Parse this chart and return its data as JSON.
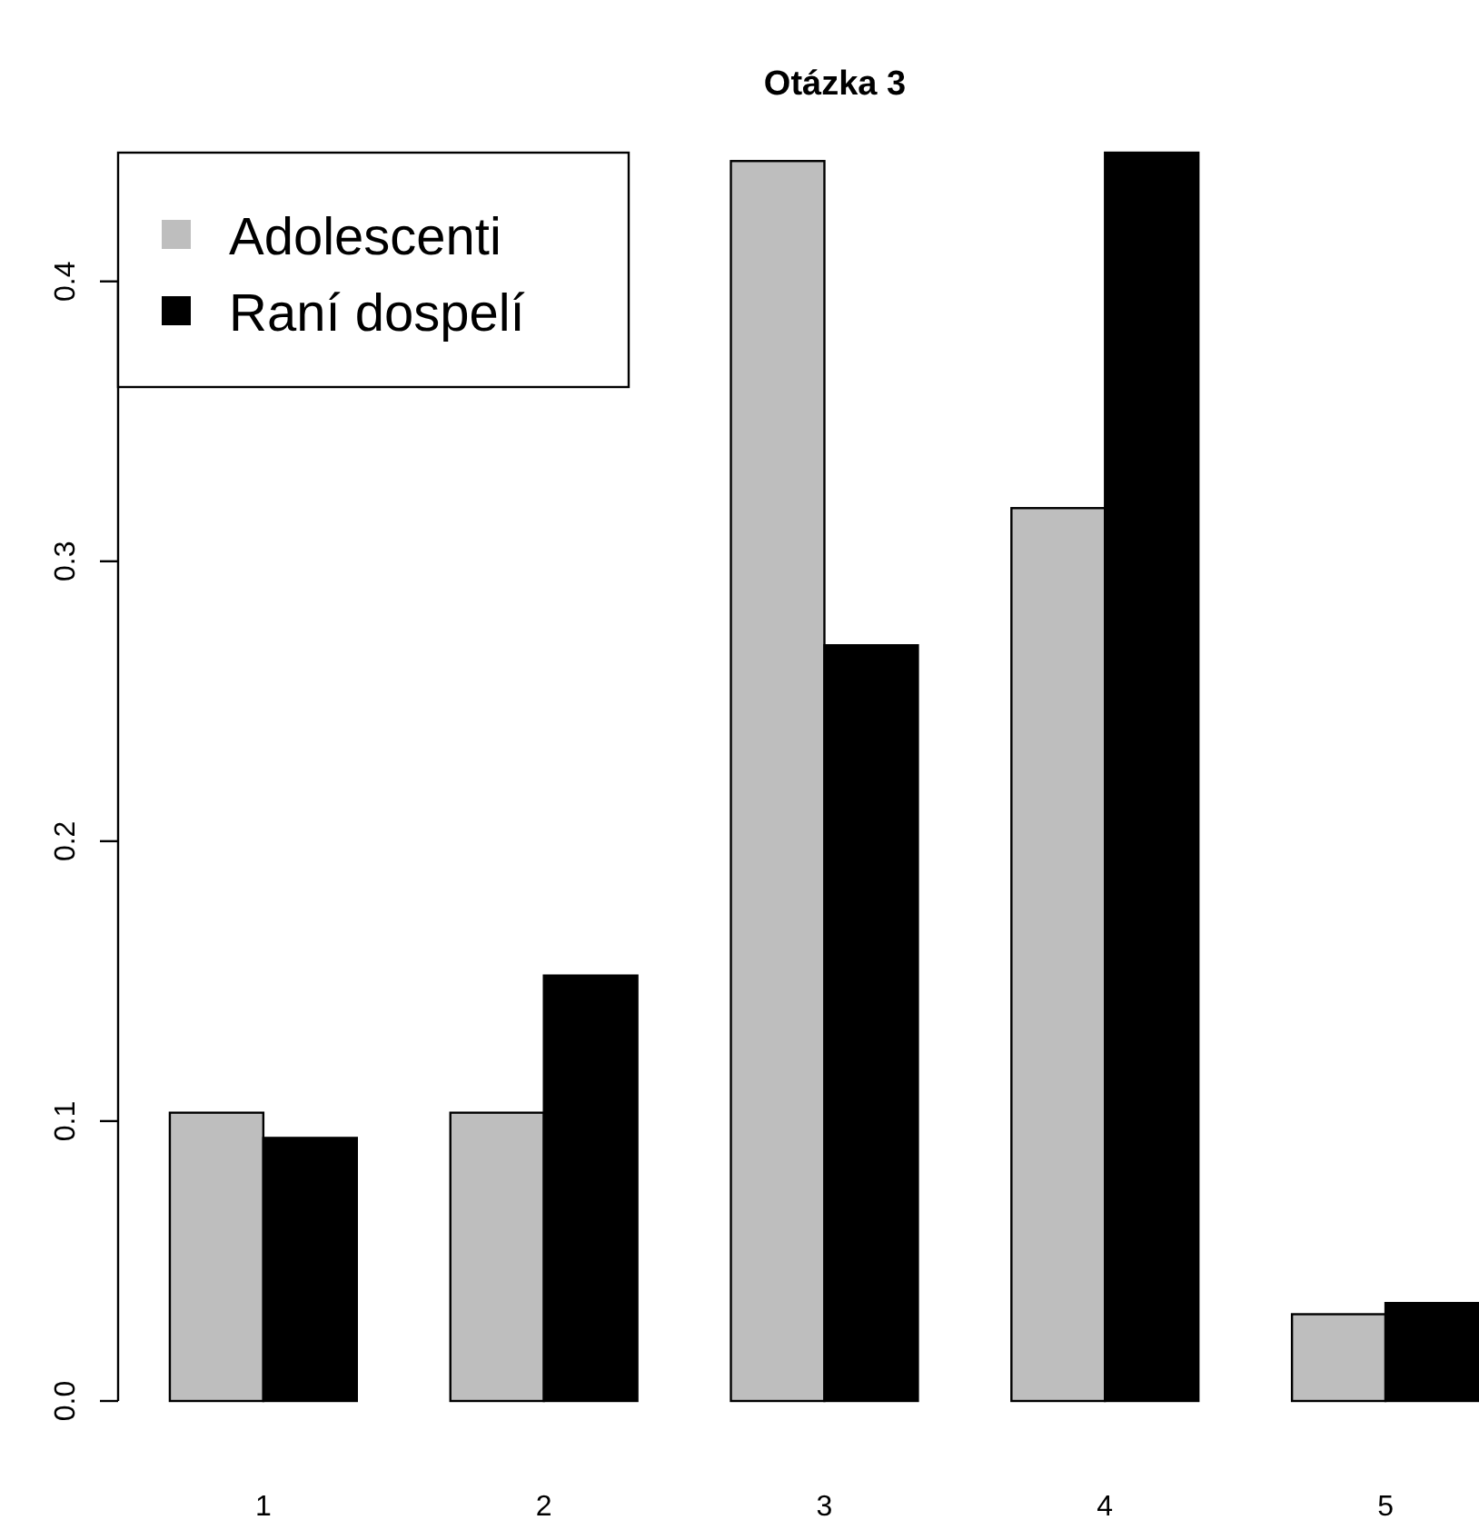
{
  "chart_data": {
    "type": "bar",
    "title": "Otázka 3",
    "categories": [
      "1",
      "2",
      "3",
      "4",
      "5"
    ],
    "series": [
      {
        "name": "Adolescenti",
        "color": "#bebebe",
        "values": [
          0.103,
          0.103,
          0.443,
          0.319,
          0.031
        ]
      },
      {
        "name": "Raní dospelí",
        "color": "#000000",
        "values": [
          0.094,
          0.152,
          0.27,
          0.446,
          0.035
        ]
      }
    ],
    "ylim": [
      0,
      0.446
    ],
    "yticks": [
      {
        "value": 0,
        "label": "0.0"
      },
      {
        "value": 0.1,
        "label": "0.1"
      },
      {
        "value": 0.2,
        "label": "0.2"
      },
      {
        "value": 0.3,
        "label": "0.3"
      },
      {
        "value": 0.4,
        "label": "0.4"
      }
    ],
    "grid": false,
    "legend": "top left"
  }
}
